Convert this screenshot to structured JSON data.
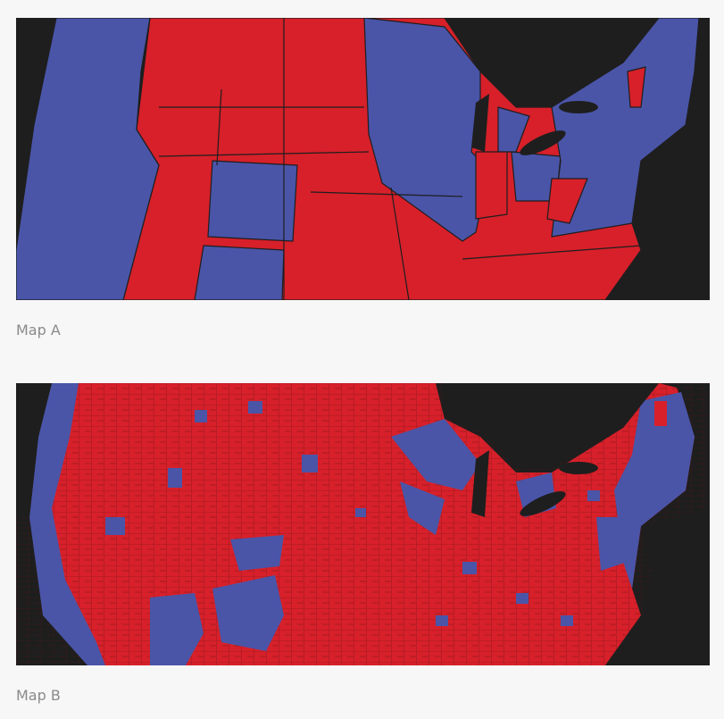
{
  "figures": [
    {
      "caption": "Map A"
    },
    {
      "caption": "Map B"
    }
  ]
}
